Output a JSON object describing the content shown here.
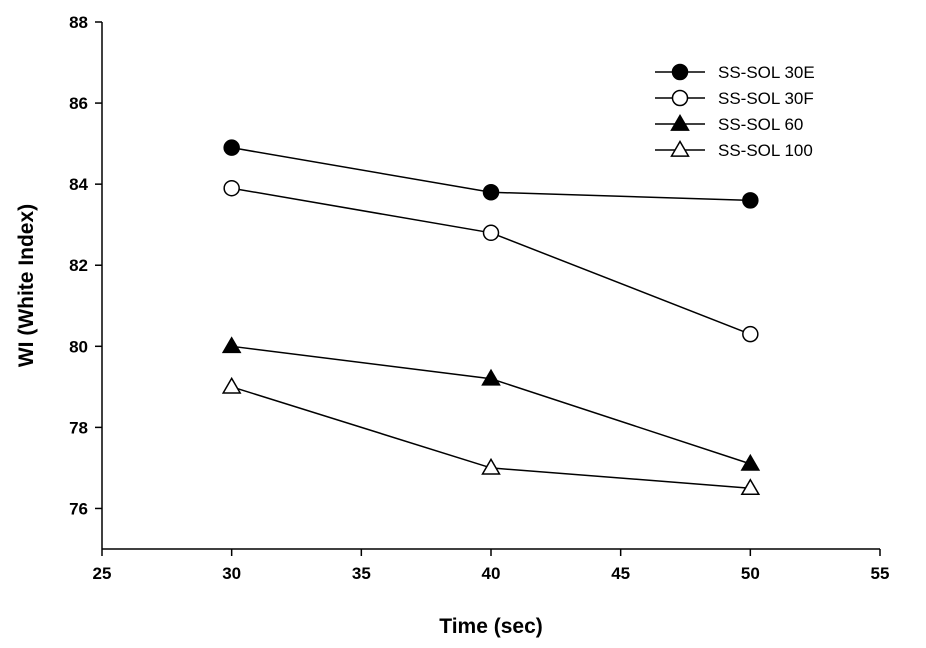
{
  "chart_data": {
    "type": "line",
    "title": "",
    "xlabel": "Time (sec)",
    "ylabel": "WI (White Index)",
    "xlim": [
      25,
      55
    ],
    "ylim": [
      75,
      88
    ],
    "xticks": [
      25,
      30,
      35,
      40,
      45,
      50,
      55
    ],
    "yticks": [
      76,
      78,
      80,
      82,
      84,
      86,
      88
    ],
    "grid": false,
    "legend_position": "top-right",
    "x": [
      30,
      40,
      50
    ],
    "series": [
      {
        "name": "SS-SOL 30E",
        "marker": "filled-circle",
        "values": [
          84.9,
          83.8,
          83.6
        ]
      },
      {
        "name": "SS-SOL 30F",
        "marker": "open-circle",
        "values": [
          83.9,
          82.8,
          80.3
        ]
      },
      {
        "name": "SS-SOL 60",
        "marker": "filled-triangle",
        "values": [
          80.0,
          79.2,
          77.1
        ]
      },
      {
        "name": "SS-SOL 100",
        "marker": "open-triangle",
        "values": [
          79.0,
          77.0,
          76.5
        ]
      }
    ],
    "colors": {
      "line": "#000000",
      "background": "#ffffff"
    }
  }
}
